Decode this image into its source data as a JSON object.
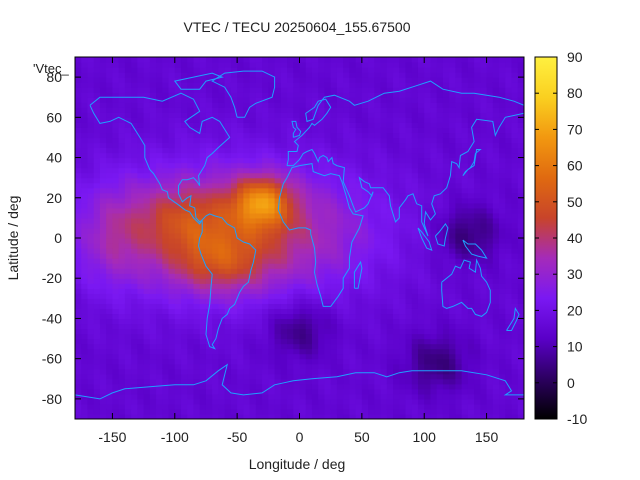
{
  "chart_data": {
    "type": "heatmap",
    "title": "VTEC / TECU 20250604_155.67500",
    "xlabel": "Longitude / deg",
    "ylabel": "Latitude / deg",
    "key_label": "'Vtec_",
    "xlim": [
      -180,
      180
    ],
    "ylim": [
      -90,
      90
    ],
    "x_ticks": [
      -150,
      -100,
      -50,
      0,
      50,
      100,
      150
    ],
    "y_ticks": [
      -80,
      -60,
      -40,
      -20,
      0,
      20,
      40,
      60,
      80
    ],
    "colorbar": {
      "range": [
        -10,
        90
      ],
      "ticks": [
        -10,
        0,
        10,
        20,
        30,
        40,
        50,
        60,
        70,
        80,
        90
      ],
      "colors": [
        "#000000",
        "#2c0060",
        "#5a00c8",
        "#7a18f2",
        "#a52bb9",
        "#c8442a",
        "#e06a10",
        "#f29810",
        "#fad020",
        "#fff040"
      ]
    },
    "features": {
      "background_tec": 15,
      "tec_peak": {
        "lon": -30,
        "lat": 18,
        "value": 80
      },
      "equatorial_anomaly": {
        "lon_range": [
          -160,
          50
        ],
        "lat_range": [
          -28,
          35
        ],
        "value_range": [
          40,
          80
        ]
      },
      "low_regions": [
        {
          "lon": 135,
          "lat": 2,
          "value": 3
        },
        {
          "lon": 0,
          "lat": -45,
          "value": 4
        },
        {
          "lon": 110,
          "lat": -62,
          "value": 4
        }
      ]
    },
    "overlay": "coastlines",
    "overlay_color": "#1ea0ff"
  }
}
